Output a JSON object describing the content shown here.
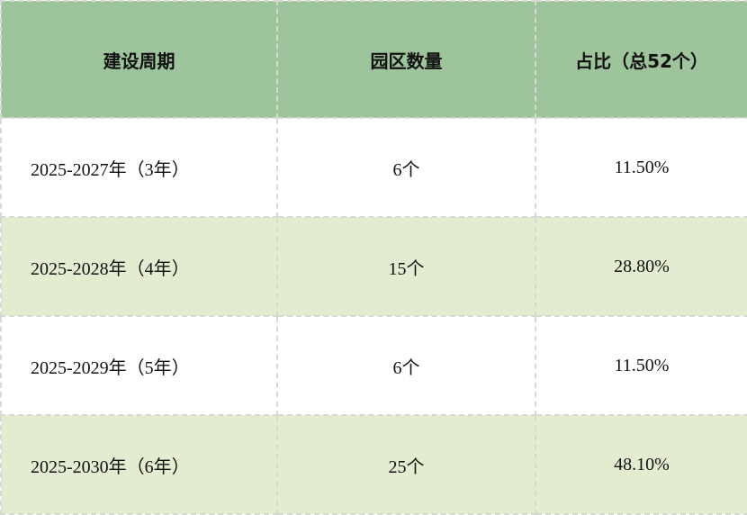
{
  "table": {
    "headers": [
      "建设周期",
      "园区数量",
      "占比（总52个）"
    ],
    "rows": [
      [
        "2025-2027年（3年）",
        "6个",
        "11.50%"
      ],
      [
        "2025-2028年（4年）",
        "15个",
        "28.80%"
      ],
      [
        "2025-2029年（5年）",
        "6个",
        "11.50%"
      ],
      [
        "2025-2030年（6年）",
        "25个",
        "48.10%"
      ]
    ]
  },
  "colors": {
    "header_bg": "#9dc49a",
    "alt_row_bg": "#e2ecd0",
    "border": "#d6d9d4"
  }
}
